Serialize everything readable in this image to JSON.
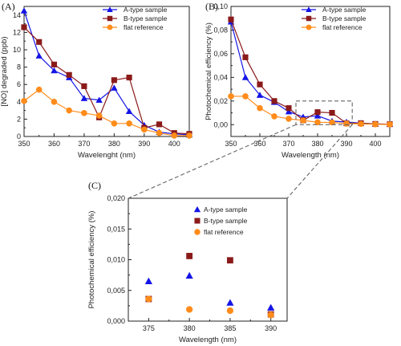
{
  "colors": {
    "A-type sample": "#1414e6",
    "B-type sample": "#8b1a1a",
    "flat reference": "#ff8c1a",
    "axis": "#222222",
    "zoom_box": "#666666"
  },
  "chart_data": [
    {
      "panel_label": "(A)",
      "type": "line",
      "xlabel": "Wavelenght (nm)",
      "ylabel": "[NO] degraded (ppb)",
      "xlim": [
        350,
        405
      ],
      "ylim": [
        0,
        15
      ],
      "x_ticks": [
        "350",
        "360",
        "370",
        "380",
        "390",
        "400"
      ],
      "y_ticks": [
        "0",
        "2",
        "4",
        "6",
        "8",
        "10",
        "12",
        "14"
      ],
      "legend_position": "top-right",
      "x": [
        350,
        355,
        360,
        365,
        370,
        375,
        380,
        385,
        390,
        395,
        400,
        405
      ],
      "series": [
        {
          "name": "A-type sample",
          "marker": "triangle",
          "values": [
            14.5,
            9.3,
            7.6,
            6.8,
            4.4,
            4.2,
            5.6,
            2.9,
            1.3,
            0.5,
            0.3,
            0.2
          ]
        },
        {
          "name": "B-type sample",
          "marker": "square",
          "values": [
            12.6,
            10.9,
            8.3,
            7.1,
            5.8,
            2.2,
            6.5,
            6.8,
            1.0,
            1.4,
            0.4,
            0.3
          ]
        },
        {
          "name": "flat reference",
          "marker": "circle",
          "values": [
            4.1,
            5.4,
            4.0,
            3.0,
            2.7,
            2.4,
            1.5,
            1.5,
            0.8,
            0.4,
            0.1,
            0.1
          ]
        }
      ]
    },
    {
      "panel_label": "(B)",
      "type": "line",
      "xlabel": "Wavelength (nm)",
      "ylabel": "Photochemical efficiency (%)",
      "xlim": [
        350,
        405
      ],
      "ylim": [
        -0.01,
        0.1
      ],
      "x_ticks": [
        "350",
        "360",
        "370",
        "380",
        "390",
        "400"
      ],
      "y_ticks": [
        "0,00",
        "0,02",
        "0,04",
        "0,06",
        "0,08",
        "0,10"
      ],
      "legend_position": "top-right",
      "x": [
        350,
        355,
        360,
        365,
        370,
        375,
        380,
        385,
        390,
        395,
        400,
        405
      ],
      "series": [
        {
          "name": "A-type sample",
          "marker": "triangle",
          "values": [
            0.087,
            0.04,
            0.025,
            0.019,
            0.011,
            0.0065,
            0.0075,
            0.003,
            0.0022,
            0.0012,
            0.0006,
            0.0004
          ]
        },
        {
          "name": "B-type sample",
          "marker": "square",
          "values": [
            0.089,
            0.057,
            0.034,
            0.02,
            0.014,
            0.0037,
            0.0106,
            0.01,
            0.0011,
            0.0012,
            0.0006,
            0.0004
          ]
        },
        {
          "name": "flat reference",
          "marker": "circle",
          "values": [
            0.024,
            0.024,
            0.014,
            0.007,
            0.005,
            0.0036,
            0.002,
            0.0019,
            0.0009,
            0.0006,
            0.0003,
            0.0002
          ]
        }
      ]
    },
    {
      "panel_label": "(C)",
      "type": "scatter",
      "xlabel": "Wavelength (nm)",
      "ylabel": "Photochemical efficiency (%)",
      "xlim": [
        372.5,
        392
      ],
      "ylim": [
        0,
        0.02
      ],
      "x_ticks": [
        "375",
        "380",
        "385",
        "390"
      ],
      "y_ticks": [
        "0,000",
        "0,005",
        "0,010",
        "0,015",
        "0,020"
      ],
      "legend_position": "top-center",
      "x": [
        375,
        380,
        385,
        390
      ],
      "series": [
        {
          "name": "A-type sample",
          "marker": "triangle",
          "values": [
            0.0065,
            0.0074,
            0.003,
            0.0022
          ]
        },
        {
          "name": "B-type sample",
          "marker": "square",
          "values": [
            0.0036,
            0.0106,
            0.0099,
            0.0011
          ]
        },
        {
          "name": "flat reference",
          "marker": "circle",
          "values": [
            0.0036,
            0.0019,
            0.0017,
            0.001
          ]
        }
      ]
    }
  ]
}
